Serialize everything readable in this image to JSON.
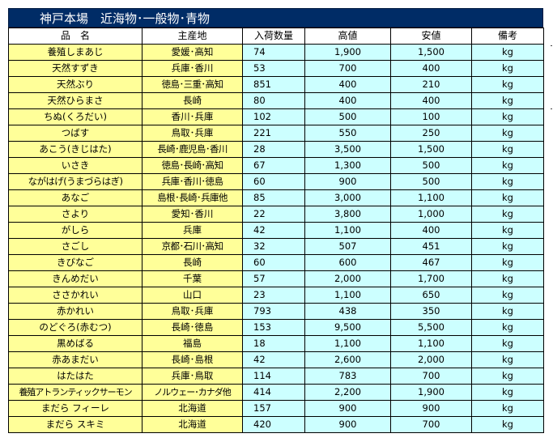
{
  "title": "神戸本場　近海物･一般物･青物",
  "headers": {
    "name": "品　名",
    "origin": "主産地",
    "quantity": "入荷数量",
    "high": "高値",
    "low": "安値",
    "note": "備考"
  },
  "rows": [
    {
      "name": "養殖しまあじ",
      "origin": "愛媛･高知",
      "quantity": "74",
      "high": "1,900",
      "low": "1,500",
      "unit": "kg"
    },
    {
      "name": "天然すずき",
      "origin": "兵庫･香川",
      "quantity": "53",
      "high": "700",
      "low": "400",
      "unit": "kg"
    },
    {
      "name": "天然ぶり",
      "origin": "徳島･三重･高知",
      "quantity": "851",
      "high": "400",
      "low": "210",
      "unit": "kg"
    },
    {
      "name": "天然ひらまさ",
      "origin": "長崎",
      "quantity": "80",
      "high": "400",
      "low": "400",
      "unit": "kg"
    },
    {
      "name": "ちぬ(くろだい)",
      "origin": "香川･兵庫",
      "quantity": "102",
      "high": "500",
      "low": "100",
      "unit": "kg"
    },
    {
      "name": "つばす",
      "origin": "鳥取･兵庫",
      "quantity": "221",
      "high": "550",
      "low": "250",
      "unit": "kg"
    },
    {
      "name": "あこう(きじはた)",
      "origin": "長崎･鹿児島･香川",
      "quantity": "28",
      "high": "3,500",
      "low": "1,500",
      "unit": "kg"
    },
    {
      "name": "いさき",
      "origin": "徳島･長崎･高知",
      "quantity": "67",
      "high": "1,300",
      "low": "500",
      "unit": "kg"
    },
    {
      "name": "ながはげ(うまづらはぎ)",
      "origin": "兵庫･香川･徳島",
      "quantity": "60",
      "high": "900",
      "low": "500",
      "unit": "kg"
    },
    {
      "name": "あなご",
      "origin": "島根･長崎･兵庫他",
      "quantity": "85",
      "high": "3,000",
      "low": "1,100",
      "unit": "kg"
    },
    {
      "name": "さより",
      "origin": "愛知･香川",
      "quantity": "22",
      "high": "3,800",
      "low": "1,000",
      "unit": "kg"
    },
    {
      "name": "がしら",
      "origin": "兵庫",
      "quantity": "42",
      "high": "1,100",
      "low": "400",
      "unit": "kg"
    },
    {
      "name": "さごし",
      "origin": "京都･石川･高知",
      "quantity": "32",
      "high": "507",
      "low": "451",
      "unit": "kg"
    },
    {
      "name": "きびなご",
      "origin": "長崎",
      "quantity": "60",
      "high": "600",
      "low": "467",
      "unit": "kg"
    },
    {
      "name": "きんめだい",
      "origin": "千葉",
      "quantity": "57",
      "high": "2,000",
      "low": "1,700",
      "unit": "kg"
    },
    {
      "name": "ささかれい",
      "origin": "山口",
      "quantity": "23",
      "high": "1,100",
      "low": "650",
      "unit": "kg"
    },
    {
      "name": "赤かれい",
      "origin": "鳥取･兵庫",
      "quantity": "793",
      "high": "438",
      "low": "350",
      "unit": "kg"
    },
    {
      "name": "のどぐろ(赤むつ)",
      "origin": "長崎･徳島",
      "quantity": "153",
      "high": "9,500",
      "low": "5,500",
      "unit": "kg"
    },
    {
      "name": "黒めばる",
      "origin": "福島",
      "quantity": "18",
      "high": "1,100",
      "low": "1,100",
      "unit": "kg"
    },
    {
      "name": "赤あまだい",
      "origin": "長崎･島根",
      "quantity": "42",
      "high": "2,600",
      "low": "2,000",
      "unit": "kg"
    },
    {
      "name": "はたはた",
      "origin": "兵庫･鳥取",
      "quantity": "114",
      "high": "783",
      "low": "700",
      "unit": "kg"
    },
    {
      "name": "養殖アトランティックサーモン",
      "origin": "ノルウェー･カナダ他",
      "quantity": "414",
      "high": "2,200",
      "low": "1,900",
      "unit": "kg"
    },
    {
      "name": "まだら フィーレ",
      "origin": "北海道",
      "quantity": "157",
      "high": "900",
      "low": "900",
      "unit": "kg"
    },
    {
      "name": "まだら スキミ",
      "origin": "北海道",
      "quantity": "420",
      "high": "900",
      "low": "700",
      "unit": "kg"
    }
  ]
}
